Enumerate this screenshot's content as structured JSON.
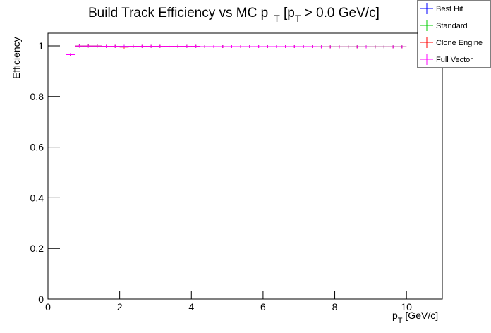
{
  "chart_data": {
    "type": "errorpoints",
    "title": [
      "Build Track Efficiency vs MC p",
      "T",
      " [p",
      "T",
      " > 0.0 GeV/c]"
    ],
    "xlabel": [
      "p",
      "T",
      " [GeV/c]"
    ],
    "ylabel": "Efficiency",
    "xlim": [
      0,
      11
    ],
    "ylim": [
      0,
      1.05
    ],
    "xticks": [
      0,
      2,
      4,
      6,
      8,
      10
    ],
    "yticks": [
      0,
      0.2,
      0.4,
      0.6,
      0.8,
      1
    ],
    "legend": "upper right",
    "x": [
      0.625,
      0.875,
      1.125,
      1.375,
      1.625,
      1.875,
      2.125,
      2.375,
      2.625,
      2.875,
      3.125,
      3.375,
      3.625,
      3.875,
      4.125,
      4.375,
      4.625,
      4.875,
      5.125,
      5.375,
      5.625,
      5.875,
      6.125,
      6.375,
      6.625,
      6.875,
      7.125,
      7.375,
      7.625,
      7.875,
      8.125,
      8.375,
      8.625,
      8.875,
      9.125,
      9.375,
      9.625,
      9.875
    ],
    "series": [
      {
        "name": "Best Hit",
        "color": "#0000ff",
        "values": [
          0.965,
          0.999,
          0.999,
          0.999,
          0.998,
          0.998,
          0.998,
          0.998,
          0.998,
          0.998,
          0.998,
          0.998,
          0.998,
          0.998,
          0.998,
          0.997,
          0.997,
          0.997,
          0.997,
          0.997,
          0.997,
          0.997,
          0.997,
          0.997,
          0.997,
          0.997,
          0.997,
          0.997,
          0.996,
          0.996,
          0.996,
          0.996,
          0.996,
          0.996,
          0.996,
          0.996,
          0.996,
          0.996
        ]
      },
      {
        "name": "Standard",
        "color": "#00cc00",
        "values": [
          0.965,
          0.999,
          0.999,
          0.999,
          0.998,
          0.998,
          0.998,
          0.998,
          0.998,
          0.998,
          0.998,
          0.998,
          0.998,
          0.998,
          0.998,
          0.997,
          0.997,
          0.997,
          0.997,
          0.997,
          0.997,
          0.997,
          0.997,
          0.997,
          0.997,
          0.997,
          0.997,
          0.997,
          0.996,
          0.996,
          0.996,
          0.996,
          0.996,
          0.996,
          0.996,
          0.996,
          0.996,
          0.996
        ]
      },
      {
        "name": "Clone Engine",
        "color": "#ff0000",
        "values": [
          0.965,
          0.999,
          0.999,
          0.999,
          0.998,
          0.998,
          0.995,
          0.998,
          0.998,
          0.998,
          0.998,
          0.998,
          0.998,
          0.998,
          0.998,
          0.997,
          0.997,
          0.997,
          0.997,
          0.997,
          0.997,
          0.997,
          0.997,
          0.997,
          0.997,
          0.997,
          0.997,
          0.997,
          0.996,
          0.996,
          0.996,
          0.996,
          0.996,
          0.996,
          0.996,
          0.996,
          0.996,
          0.996
        ]
      },
      {
        "name": "Full Vector",
        "color": "#ff00ff",
        "values": [
          0.965,
          0.999,
          0.999,
          0.999,
          0.998,
          0.998,
          0.998,
          0.998,
          0.998,
          0.998,
          0.998,
          0.998,
          0.998,
          0.998,
          0.998,
          0.997,
          0.997,
          0.997,
          0.997,
          0.997,
          0.997,
          0.997,
          0.997,
          0.997,
          0.997,
          0.997,
          0.997,
          0.997,
          0.996,
          0.996,
          0.996,
          0.996,
          0.996,
          0.996,
          0.996,
          0.996,
          0.996,
          0.996
        ]
      }
    ]
  }
}
